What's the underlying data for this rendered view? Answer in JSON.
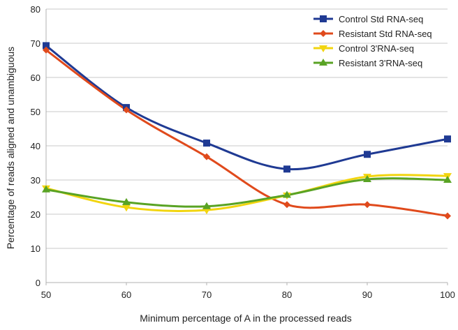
{
  "chart_data": {
    "type": "line",
    "smooth": true,
    "title": "",
    "xlabel": "Minimum percentage of A in the processed reads",
    "ylabel": "Percentage of reads aligned and unambiguous",
    "x": [
      50,
      60,
      70,
      80,
      90,
      100
    ],
    "xlim": [
      50,
      100
    ],
    "ylim": [
      0,
      80
    ],
    "xticks": [
      50,
      60,
      70,
      80,
      90,
      100
    ],
    "yticks": [
      0,
      10,
      20,
      30,
      40,
      50,
      60,
      70,
      80
    ],
    "grid": {
      "y": true,
      "x": false
    },
    "legend_position": "top-right",
    "series": [
      {
        "name": "Control Std RNA-seq",
        "color": "#1f3a93",
        "marker": "square",
        "values": [
          69.3,
          51.2,
          40.8,
          33.2,
          37.5,
          42.0
        ]
      },
      {
        "name": "Resistant Std RNA-seq",
        "color": "#e04a1c",
        "marker": "diamond",
        "values": [
          68.0,
          50.5,
          36.8,
          22.8,
          22.8,
          19.5
        ]
      },
      {
        "name": "Control 3'RNA-seq",
        "color": "#f2d50f",
        "marker": "triangle-down",
        "values": [
          27.6,
          22.0,
          21.2,
          25.5,
          31.0,
          31.2
        ]
      },
      {
        "name": "Resistant 3'RNA-seq",
        "color": "#59a324",
        "marker": "triangle-up",
        "values": [
          27.2,
          23.5,
          22.3,
          25.6,
          30.2,
          30.0
        ]
      }
    ]
  }
}
